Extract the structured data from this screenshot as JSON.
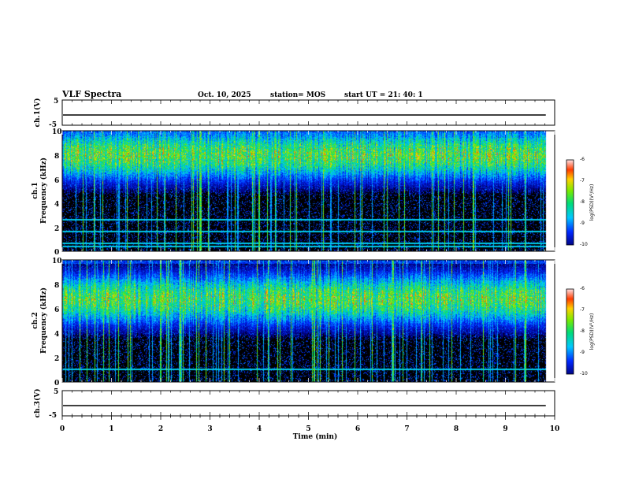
{
  "header": {
    "title": "VLF Spectra",
    "date": "Oct. 10, 2025",
    "station": "station= MOS",
    "start": "start  UT  =   21: 40: 1"
  },
  "chart_data": [
    {
      "type": "line",
      "name": "ch1-voltage",
      "ylabel": "ch.1(V)",
      "ylim": [
        -5,
        5
      ],
      "yticks": [
        "5",
        "-5"
      ],
      "baseline": 0,
      "xlim": [
        0,
        10
      ]
    },
    {
      "type": "heatmap",
      "name": "ch1-spectrogram",
      "ylabel": "ch.1\nFrequency (kHz)",
      "ylim": [
        0,
        10
      ],
      "yticks": [
        "10",
        "8",
        "6",
        "4",
        "2",
        "0"
      ],
      "xlim": [
        0,
        10
      ],
      "data_end_min": 9.82,
      "colorbar": {
        "label": "log(PSD)(V²/Hz)",
        "ticks": [
          "-6",
          "-7",
          "-8",
          "-9",
          "-10"
        ],
        "range": [
          -10,
          -6
        ]
      },
      "band_center_khz": 8.0,
      "band_low_khz": 3.0,
      "narrowband_lines_khz": [
        2.6,
        1.6,
        0.6,
        0.35
      ]
    },
    {
      "type": "heatmap",
      "name": "ch2-spectrogram",
      "ylabel": "ch.2\nFrequency (kHz)",
      "ylim": [
        0,
        10
      ],
      "yticks": [
        "10",
        "8",
        "6",
        "4",
        "2",
        "0"
      ],
      "xlim": [
        0,
        10
      ],
      "data_end_min": 9.82,
      "colorbar": {
        "label": "log(PSD)(V²/Hz)",
        "ticks": [
          "-6",
          "-7",
          "-8",
          "-9",
          "-10"
        ],
        "range": [
          -10,
          -6
        ]
      },
      "band_center_khz": 6.8,
      "band_low_khz": 3.5,
      "narrowband_lines_khz": [
        1.0
      ]
    },
    {
      "type": "line",
      "name": "ch3-voltage",
      "ylabel": "ch.3(V)",
      "ylim": [
        -5,
        5
      ],
      "yticks": [
        "5",
        "-5"
      ],
      "baseline": 0,
      "xlim": [
        0,
        10
      ]
    }
  ],
  "xaxis": {
    "label": "Time (min)",
    "ticks": [
      "0",
      "1",
      "2",
      "3",
      "4",
      "5",
      "6",
      "7",
      "8",
      "9",
      "10"
    ]
  },
  "colors": {
    "background": "#000000",
    "axis": "#000000"
  }
}
